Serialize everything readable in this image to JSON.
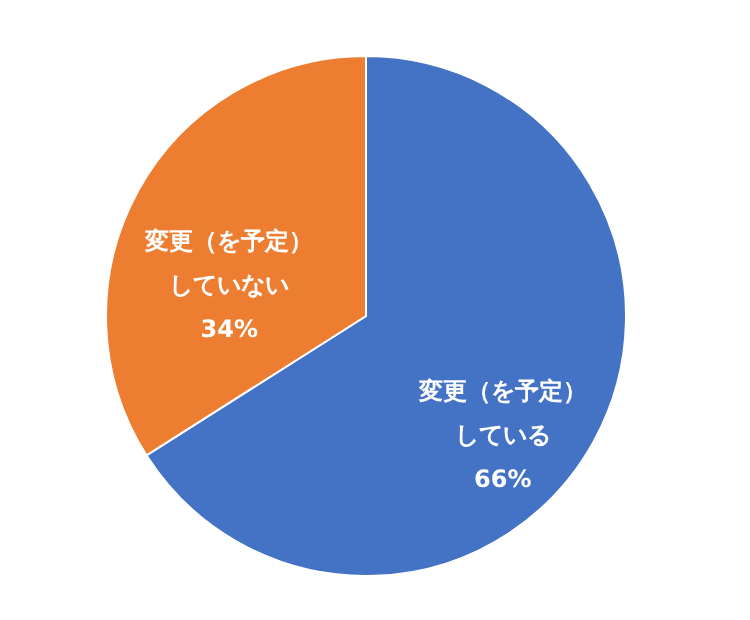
{
  "chart_data": {
    "type": "pie",
    "categories": [
      "変更（を予定）している",
      "変更（を予定）していない"
    ],
    "values": [
      66,
      34
    ],
    "colors": [
      "#4472c4",
      "#ed7d31"
    ],
    "value_labels": [
      "66%",
      "34%"
    ]
  }
}
